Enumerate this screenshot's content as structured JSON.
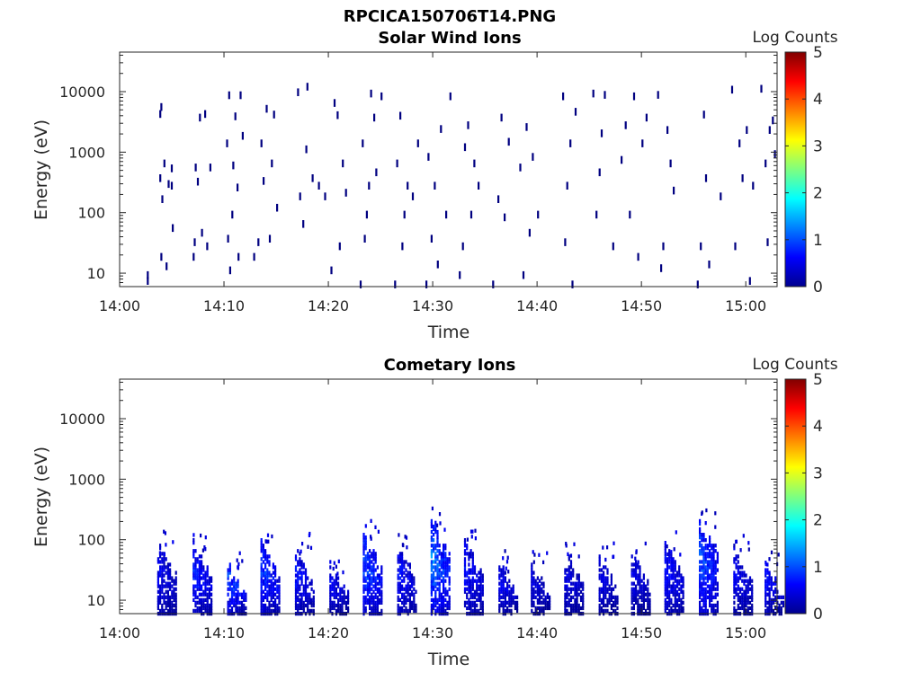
{
  "figure_title": "RPCICA150706T14.PNG",
  "chart_data": [
    {
      "type": "heatmap",
      "title": "Solar Wind Ions",
      "xlabel": "Time",
      "ylabel": "Energy (eV)",
      "y_scale": "log",
      "ylim": [
        6,
        45000
      ],
      "xlim_minutes": [
        0,
        63
      ],
      "x_ticks": [
        "14:00",
        "14:10",
        "14:20",
        "14:30",
        "14:40",
        "14:50",
        "15:00"
      ],
      "y_ticks": [
        "10",
        "100",
        "1000",
        "10000"
      ],
      "colorbar": {
        "label": "Log Counts",
        "ticks": [
          "0",
          "1",
          "2",
          "3",
          "4",
          "5"
        ],
        "range": [
          0,
          5
        ],
        "colormap": "jet"
      },
      "cells": [
        [
          2.6,
          8,
          0
        ],
        [
          2.6,
          10,
          0
        ],
        [
          3.8,
          4600,
          0
        ],
        [
          3.9,
          6000,
          0
        ],
        [
          3.8,
          400,
          0
        ],
        [
          4.0,
          180,
          0
        ],
        [
          4.2,
          700,
          0
        ],
        [
          3.9,
          20,
          0
        ],
        [
          4.4,
          14,
          0
        ],
        [
          4.6,
          320,
          0
        ],
        [
          4.9,
          300,
          0
        ],
        [
          5.0,
          60,
          0
        ],
        [
          4.9,
          580,
          0
        ],
        [
          7.0,
          20,
          0
        ],
        [
          7.1,
          35,
          0
        ],
        [
          7.2,
          600,
          0
        ],
        [
          7.4,
          350,
          0
        ],
        [
          7.6,
          4000,
          0
        ],
        [
          7.8,
          50,
          0
        ],
        [
          8.1,
          4600,
          0
        ],
        [
          8.3,
          30,
          0
        ],
        [
          8.6,
          600,
          0
        ],
        [
          10.2,
          1500,
          0
        ],
        [
          10.4,
          9400,
          0
        ],
        [
          10.3,
          40,
          0
        ],
        [
          10.5,
          12,
          0
        ],
        [
          10.7,
          100,
          0
        ],
        [
          10.8,
          650,
          0
        ],
        [
          11.0,
          4200,
          0
        ],
        [
          11.3,
          20,
          0
        ],
        [
          11.5,
          9400,
          0
        ],
        [
          11.7,
          2000,
          0
        ],
        [
          11.2,
          280,
          0
        ],
        [
          12.8,
          20,
          0
        ],
        [
          13.2,
          35,
          0
        ],
        [
          13.5,
          1500,
          0
        ],
        [
          13.7,
          360,
          0
        ],
        [
          14.0,
          5600,
          0
        ],
        [
          14.3,
          40,
          0
        ],
        [
          14.5,
          700,
          0
        ],
        [
          14.7,
          4500,
          0
        ],
        [
          15.0,
          130,
          0
        ],
        [
          17.0,
          10500,
          0
        ],
        [
          17.2,
          200,
          0
        ],
        [
          17.5,
          70,
          0
        ],
        [
          17.8,
          1200,
          0
        ],
        [
          17.9,
          13000,
          0
        ],
        [
          18.4,
          400,
          0
        ],
        [
          19.0,
          300,
          0
        ],
        [
          19.6,
          200,
          0
        ],
        [
          20.2,
          12,
          0
        ],
        [
          20.5,
          7000,
          0
        ],
        [
          20.8,
          4400,
          0
        ],
        [
          21.0,
          30,
          0
        ],
        [
          21.3,
          700,
          0
        ],
        [
          21.6,
          230,
          0
        ],
        [
          23.0,
          7,
          0
        ],
        [
          23.2,
          1500,
          0
        ],
        [
          23.4,
          40,
          0
        ],
        [
          23.6,
          100,
          0
        ],
        [
          23.8,
          300,
          0
        ],
        [
          24.0,
          10000,
          0
        ],
        [
          24.3,
          4000,
          0
        ],
        [
          24.5,
          500,
          0
        ],
        [
          25.0,
          9000,
          0
        ],
        [
          26.3,
          7,
          0
        ],
        [
          26.5,
          700,
          0
        ],
        [
          26.8,
          4300,
          0
        ],
        [
          27.0,
          30,
          0
        ],
        [
          27.2,
          100,
          0
        ],
        [
          27.5,
          300,
          0
        ],
        [
          28.0,
          200,
          0
        ],
        [
          28.5,
          1500,
          0
        ],
        [
          29.3,
          7,
          0
        ],
        [
          29.5,
          900,
          0
        ],
        [
          29.8,
          40,
          0
        ],
        [
          30.1,
          300,
          0
        ],
        [
          30.4,
          15,
          0
        ],
        [
          30.7,
          2600,
          0
        ],
        [
          31.2,
          100,
          0
        ],
        [
          31.6,
          9000,
          0
        ],
        [
          32.5,
          10,
          0
        ],
        [
          32.8,
          30,
          0
        ],
        [
          33.0,
          1300,
          0
        ],
        [
          33.3,
          3000,
          0
        ],
        [
          33.6,
          100,
          0
        ],
        [
          33.9,
          700,
          0
        ],
        [
          34.3,
          300,
          0
        ],
        [
          35.7,
          7,
          0
        ],
        [
          36.2,
          180,
          0
        ],
        [
          36.5,
          4000,
          0
        ],
        [
          36.8,
          90,
          0
        ],
        [
          37.2,
          1600,
          0
        ],
        [
          38.3,
          600,
          0
        ],
        [
          38.6,
          10,
          0
        ],
        [
          38.9,
          2800,
          0
        ],
        [
          39.2,
          50,
          0
        ],
        [
          39.5,
          900,
          0
        ],
        [
          40.0,
          100,
          0
        ],
        [
          42.4,
          9000,
          0
        ],
        [
          42.6,
          35,
          0
        ],
        [
          42.8,
          300,
          0
        ],
        [
          43.1,
          1500,
          0
        ],
        [
          43.3,
          7,
          0
        ],
        [
          43.6,
          5000,
          0
        ],
        [
          45.3,
          10000,
          0
        ],
        [
          45.6,
          100,
          0
        ],
        [
          45.9,
          500,
          0
        ],
        [
          46.1,
          2200,
          0
        ],
        [
          46.4,
          9500,
          0
        ],
        [
          47.2,
          30,
          0
        ],
        [
          48.0,
          800,
          0
        ],
        [
          48.4,
          3000,
          0
        ],
        [
          48.8,
          100,
          0
        ],
        [
          49.2,
          9000,
          0
        ],
        [
          49.6,
          20,
          0
        ],
        [
          50.0,
          1500,
          0
        ],
        [
          50.4,
          4000,
          0
        ],
        [
          51.5,
          9500,
          0
        ],
        [
          51.8,
          13,
          0
        ],
        [
          52.0,
          30,
          0
        ],
        [
          52.4,
          2500,
          0
        ],
        [
          52.7,
          700,
          0
        ],
        [
          53.0,
          250,
          0
        ],
        [
          55.3,
          7,
          0
        ],
        [
          55.6,
          30,
          0
        ],
        [
          55.9,
          4500,
          0
        ],
        [
          56.1,
          400,
          0
        ],
        [
          56.4,
          15,
          0
        ],
        [
          57.5,
          200,
          0
        ],
        [
          58.6,
          11600,
          0
        ],
        [
          58.9,
          30,
          0
        ],
        [
          59.3,
          1500,
          0
        ],
        [
          59.6,
          400,
          0
        ],
        [
          60.0,
          2500,
          0
        ],
        [
          60.3,
          8,
          0
        ],
        [
          60.6,
          300,
          0
        ],
        [
          61.4,
          12000,
          0
        ],
        [
          61.8,
          700,
          0
        ],
        [
          62.0,
          35,
          0
        ],
        [
          62.2,
          2500,
          0
        ],
        [
          62.5,
          3600,
          0
        ],
        [
          62.7,
          1000,
          0
        ]
      ]
    },
    {
      "type": "heatmap",
      "title": "Cometary Ions",
      "xlabel": "Time",
      "ylabel": "Energy (eV)",
      "y_scale": "log",
      "ylim": [
        6,
        45000
      ],
      "xlim_minutes": [
        0,
        63
      ],
      "x_ticks": [
        "14:00",
        "14:10",
        "14:20",
        "14:30",
        "14:40",
        "14:50",
        "15:00"
      ],
      "y_ticks": [
        "10",
        "100",
        "1000",
        "10000"
      ],
      "colorbar": {
        "label": "Log Counts",
        "ticks": [
          "0",
          "1",
          "2",
          "3",
          "4",
          "5"
        ],
        "range": [
          0,
          5
        ],
        "colormap": "jet"
      },
      "bursts": [
        {
          "t": 3.6,
          "emin": 6,
          "emax": 95,
          "peak": 0.6
        },
        {
          "t": 7.0,
          "emin": 6,
          "emax": 95,
          "peak": 0.8
        },
        {
          "t": 10.3,
          "emin": 6,
          "emax": 45,
          "peak": 1.0
        },
        {
          "t": 13.5,
          "emin": 6,
          "emax": 90,
          "peak": 0.9
        },
        {
          "t": 16.8,
          "emin": 6,
          "emax": 85,
          "peak": 0.7
        },
        {
          "t": 20.1,
          "emin": 6,
          "emax": 45,
          "peak": 0.6
        },
        {
          "t": 23.3,
          "emin": 6,
          "emax": 140,
          "peak": 1.0
        },
        {
          "t": 26.6,
          "emin": 6,
          "emax": 90,
          "peak": 0.7
        },
        {
          "t": 29.8,
          "emin": 6,
          "emax": 220,
          "peak": 1.2
        },
        {
          "t": 33.0,
          "emin": 6,
          "emax": 95,
          "peak": 0.7
        },
        {
          "t": 36.3,
          "emin": 6,
          "emax": 45,
          "peak": 0.6
        },
        {
          "t": 39.4,
          "emin": 6,
          "emax": 45,
          "peak": 0.5
        },
        {
          "t": 42.6,
          "emin": 6,
          "emax": 70,
          "peak": 0.5
        },
        {
          "t": 45.9,
          "emin": 6,
          "emax": 60,
          "peak": 0.5
        },
        {
          "t": 49.0,
          "emin": 6,
          "emax": 60,
          "peak": 0.5
        },
        {
          "t": 52.2,
          "emin": 6,
          "emax": 90,
          "peak": 0.7
        },
        {
          "t": 55.5,
          "emin": 6,
          "emax": 230,
          "peak": 1.0
        },
        {
          "t": 58.8,
          "emin": 6,
          "emax": 90,
          "peak": 0.6
        },
        {
          "t": 61.8,
          "emin": 6,
          "emax": 45,
          "peak": 0.7
        }
      ]
    }
  ]
}
